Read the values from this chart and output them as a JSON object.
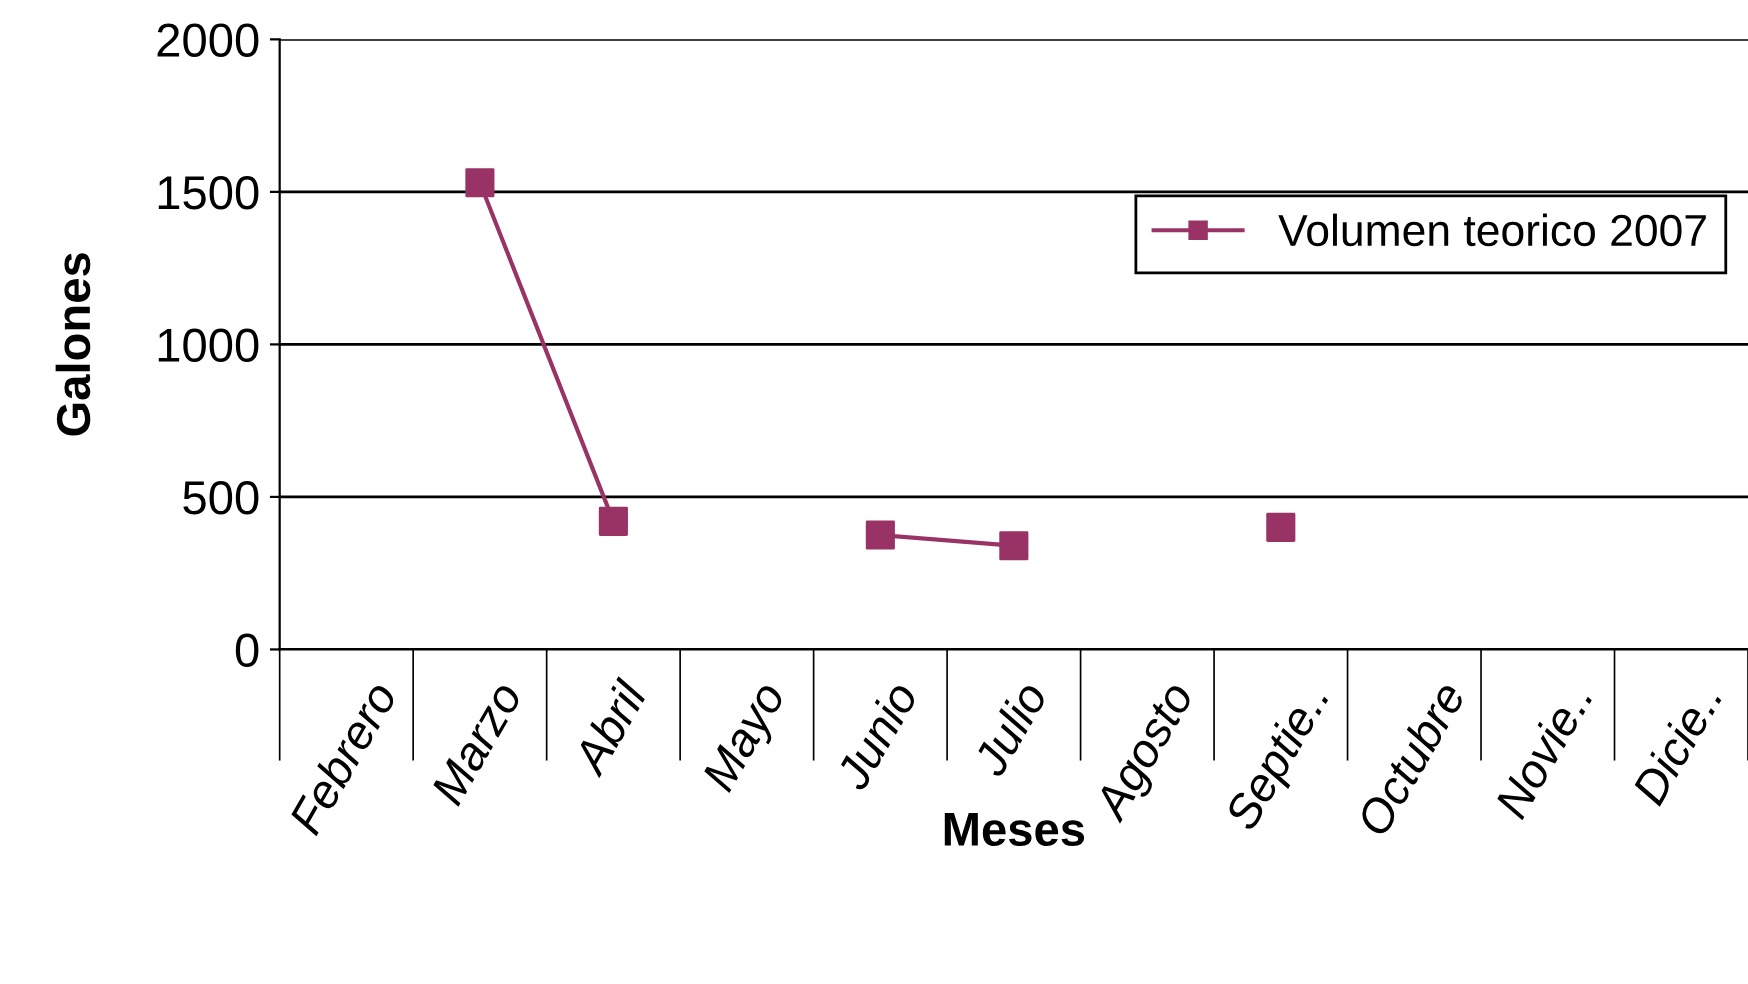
{
  "chart_data": {
    "type": "line",
    "xlabel": "Meses",
    "ylabel": "Galones",
    "categories": [
      "Febrero",
      "Marzo",
      "Abril",
      "Mayo",
      "Junio",
      "Julio",
      "Agosto",
      "Septie..",
      "Octubre",
      "Novie..",
      "Dicie.."
    ],
    "series": [
      {
        "name": "Volumen teorico 2007",
        "color": "#993366",
        "values": [
          null,
          1530,
          420,
          null,
          375,
          340,
          null,
          400,
          null,
          null,
          null
        ]
      }
    ],
    "ylim": [
      0,
      2000
    ],
    "yticks": [
      0,
      500,
      1000,
      1500,
      2000
    ],
    "grid": "y",
    "legend": "top right",
    "marker": "square",
    "line_style": "solid"
  }
}
